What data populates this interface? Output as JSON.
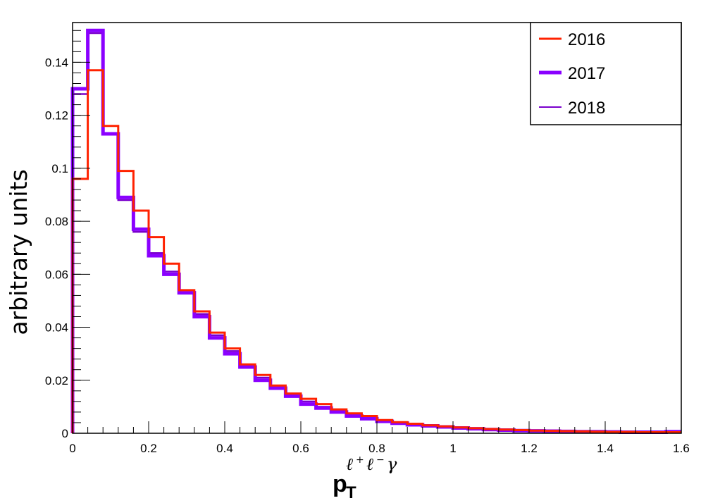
{
  "chart_data": {
    "type": "histogram",
    "x_range": [
      0,
      1.6
    ],
    "y_range": [
      0,
      0.155
    ],
    "x_ticks": [
      0,
      0.2,
      0.4,
      0.6,
      0.8,
      1,
      1.2,
      1.4,
      1.6
    ],
    "x_tick_labels": [
      "0",
      "0.2",
      "0.4",
      "0.6",
      "0.8",
      "1",
      "1.2",
      "1.4",
      "1.6"
    ],
    "y_ticks": [
      0,
      0.02,
      0.04,
      0.06,
      0.08,
      0.1,
      0.12,
      0.14
    ],
    "y_tick_labels": [
      "0",
      "0.02",
      "0.04",
      "0.06",
      "0.08",
      "0.1",
      "0.12",
      "0.14"
    ],
    "ylabel": "arbitrary units",
    "xlabel": {
      "main": "p",
      "sub": "T",
      "sup_l1": "ℓ",
      "sup_s1": "+",
      "sup_l2": "ℓ",
      "sup_s2": "−",
      "sup_g": "γ"
    },
    "bin_edges": [
      0,
      0.04,
      0.08,
      0.12,
      0.16,
      0.2,
      0.24,
      0.28,
      0.32,
      0.36,
      0.4,
      0.44,
      0.48,
      0.52,
      0.56,
      0.6,
      0.64,
      0.68,
      0.72,
      0.76,
      0.8,
      0.84,
      0.88,
      0.92,
      0.96,
      1.0,
      1.04,
      1.08,
      1.12,
      1.16,
      1.2,
      1.24,
      1.28,
      1.32,
      1.36,
      1.4,
      1.44,
      1.48,
      1.52,
      1.56,
      1.6
    ],
    "legend_position": "top-right",
    "series": [
      {
        "name": "2018",
        "color": "#7a00cc",
        "style": "thin",
        "values": [
          0.128,
          0.151,
          0.113,
          0.088,
          0.076,
          0.068,
          0.061,
          0.053,
          0.045,
          0.037,
          0.031,
          0.026,
          0.021,
          0.018,
          0.015,
          0.012,
          0.01,
          0.0085,
          0.007,
          0.006,
          0.005,
          0.004,
          0.0035,
          0.003,
          0.0025,
          0.002,
          0.0018,
          0.0015,
          0.0013,
          0.0011,
          0.001,
          0.0009,
          0.0008,
          0.0007,
          0.0006,
          0.0005,
          0.0005,
          0.0004,
          0.0004,
          0.0005
        ]
      },
      {
        "name": "2017",
        "color": "#8a00ff",
        "style": "thick",
        "values": [
          0.13,
          0.152,
          0.113,
          0.089,
          0.077,
          0.067,
          0.06,
          0.053,
          0.044,
          0.036,
          0.03,
          0.025,
          0.02,
          0.017,
          0.014,
          0.011,
          0.0095,
          0.008,
          0.0065,
          0.0055,
          0.0045,
          0.0038,
          0.0032,
          0.0028,
          0.0024,
          0.002,
          0.0017,
          0.0014,
          0.0012,
          0.001,
          0.0009,
          0.0008,
          0.0007,
          0.0006,
          0.0006,
          0.0005,
          0.0004,
          0.0004,
          0.0004,
          0.0006
        ]
      },
      {
        "name": "2016",
        "color": "#ff2200",
        "style": "medium",
        "values": [
          0.096,
          0.137,
          0.116,
          0.099,
          0.084,
          0.074,
          0.064,
          0.054,
          0.046,
          0.038,
          0.032,
          0.026,
          0.022,
          0.018,
          0.015,
          0.013,
          0.011,
          0.009,
          0.0075,
          0.0065,
          0.005,
          0.0042,
          0.0036,
          0.003,
          0.0026,
          0.0022,
          0.0019,
          0.0016,
          0.0014,
          0.0012,
          0.001,
          0.0009,
          0.0008,
          0.0007,
          0.0006,
          0.0005,
          0.0005,
          0.0004,
          0.0004,
          0.0004
        ]
      }
    ]
  }
}
